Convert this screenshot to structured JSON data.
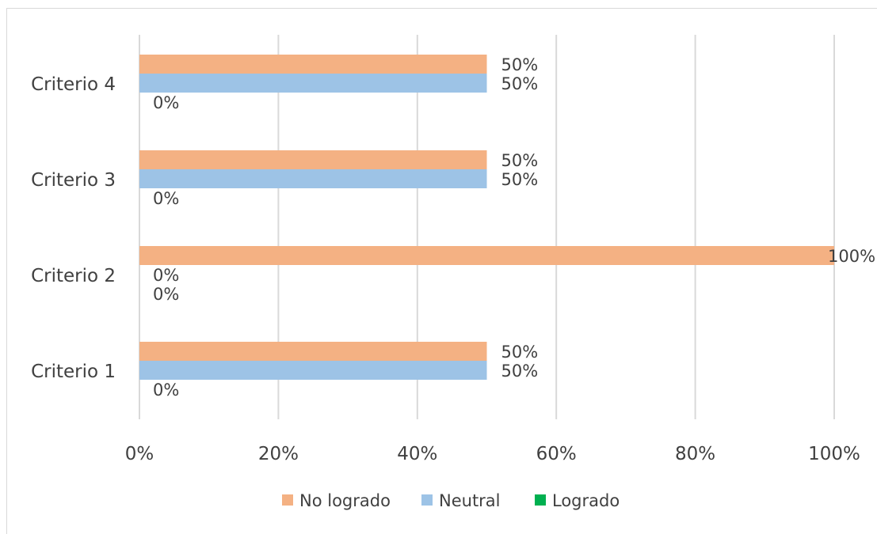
{
  "chart_data": {
    "type": "bar",
    "orientation": "horizontal",
    "categories": [
      "Criterio 1",
      "Criterio 2",
      "Criterio 3",
      "Criterio 4"
    ],
    "series": [
      {
        "name": "No logrado",
        "color": "#f4b183",
        "values": [
          50,
          100,
          50,
          50
        ],
        "labels": [
          "50%",
          "100%",
          "50%",
          "50%"
        ]
      },
      {
        "name": "Neutral",
        "color": "#9dc3e6",
        "values": [
          50,
          0,
          50,
          50
        ],
        "labels": [
          "50%",
          "0%",
          "50%",
          "50%"
        ]
      },
      {
        "name": "Logrado",
        "color": "#00b050",
        "values": [
          0,
          0,
          0,
          0
        ],
        "labels": [
          "0%",
          "0%",
          "0%",
          "0%"
        ]
      }
    ],
    "xlim": [
      0,
      100
    ],
    "xticks": [
      "0%",
      "20%",
      "40%",
      "60%",
      "80%",
      "100%"
    ],
    "grid": true,
    "legend_position": "bottom"
  }
}
